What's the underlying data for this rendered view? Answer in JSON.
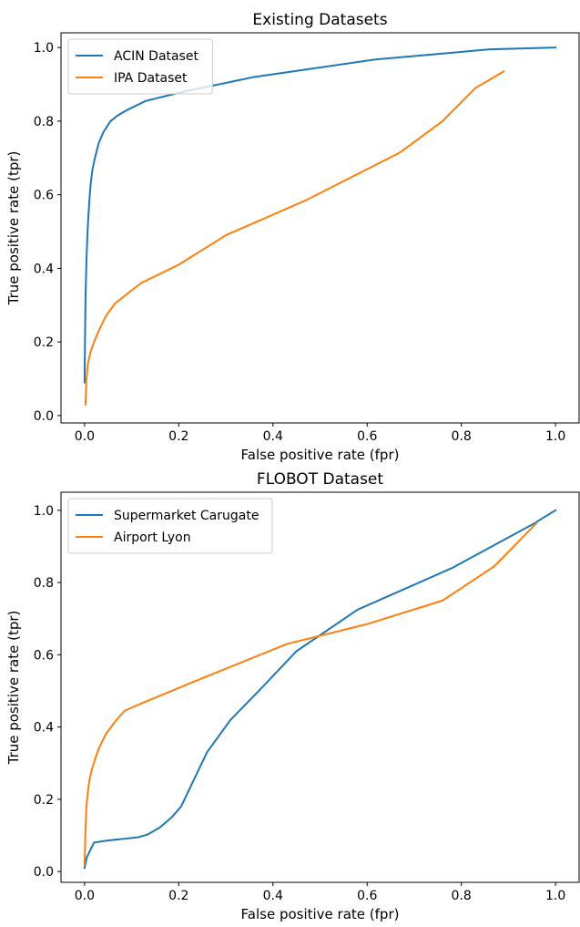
{
  "chart_data": [
    {
      "type": "line",
      "title": "Existing Datasets",
      "xlabel": "False positive rate (fpr)",
      "ylabel": "True positive rate (tpr)",
      "xlim": [
        -0.05,
        1.05
      ],
      "ylim": [
        -0.02,
        1.04
      ],
      "xticks": [
        0.0,
        0.2,
        0.4,
        0.6,
        0.8,
        1.0
      ],
      "xtick_labels": [
        "0.0",
        "0.2",
        "0.4",
        "0.6",
        "0.8",
        "1.0"
      ],
      "yticks": [
        0.0,
        0.2,
        0.4,
        0.6,
        0.8,
        1.0
      ],
      "ytick_labels": [
        "0.0",
        "0.2",
        "0.4",
        "0.6",
        "0.8",
        "1.0"
      ],
      "grid": false,
      "legend_position": "upper left",
      "series": [
        {
          "name": "ACIN Dataset",
          "color": "#1f77b4",
          "x": [
            0.0,
            0.002,
            0.004,
            0.006,
            0.008,
            0.01,
            0.013,
            0.017,
            0.022,
            0.03,
            0.04,
            0.055,
            0.07,
            0.09,
            0.13,
            0.21,
            0.36,
            0.62,
            0.86,
            1.0
          ],
          "y": [
            0.09,
            0.32,
            0.42,
            0.49,
            0.54,
            0.58,
            0.63,
            0.67,
            0.7,
            0.74,
            0.77,
            0.8,
            0.815,
            0.83,
            0.855,
            0.88,
            0.92,
            0.968,
            0.995,
            1.0
          ]
        },
        {
          "name": "IPA Dataset",
          "color": "#ff7f0e",
          "x": [
            0.002,
            0.004,
            0.007,
            0.012,
            0.02,
            0.03,
            0.045,
            0.065,
            0.08,
            0.12,
            0.2,
            0.3,
            0.47,
            0.67,
            0.76,
            0.83,
            0.89
          ],
          "y": [
            0.03,
            0.1,
            0.14,
            0.17,
            0.2,
            0.23,
            0.27,
            0.305,
            0.32,
            0.36,
            0.41,
            0.49,
            0.585,
            0.715,
            0.8,
            0.89,
            0.935
          ]
        }
      ]
    },
    {
      "type": "line",
      "title": "FLOBOT Dataset",
      "xlabel": "False positive rate (fpr)",
      "ylabel": "True positive rate (tpr)",
      "xlim": [
        -0.05,
        1.05
      ],
      "ylim": [
        -0.03,
        1.05
      ],
      "xticks": [
        0.0,
        0.2,
        0.4,
        0.6,
        0.8,
        1.0
      ],
      "xtick_labels": [
        "0.0",
        "0.2",
        "0.4",
        "0.6",
        "0.8",
        "1.0"
      ],
      "yticks": [
        0.0,
        0.2,
        0.4,
        0.6,
        0.8,
        1.0
      ],
      "ytick_labels": [
        "0.0",
        "0.2",
        "0.4",
        "0.6",
        "0.8",
        "1.0"
      ],
      "grid": false,
      "legend_position": "upper left",
      "series": [
        {
          "name": "Supermarket Carugate",
          "color": "#1f77b4",
          "x": [
            0.0,
            0.005,
            0.02,
            0.05,
            0.08,
            0.115,
            0.135,
            0.16,
            0.185,
            0.205,
            0.26,
            0.31,
            0.37,
            0.45,
            0.58,
            0.78,
            0.95,
            1.0
          ],
          "y": [
            0.01,
            0.04,
            0.08,
            0.086,
            0.09,
            0.095,
            0.103,
            0.122,
            0.15,
            0.18,
            0.33,
            0.42,
            0.5,
            0.61,
            0.725,
            0.84,
            0.96,
            1.0
          ],
          "points_order": "xy"
        },
        {
          "name": "Airport Lyon",
          "color": "#ff7f0e",
          "x": [
            0.0,
            0.002,
            0.004,
            0.007,
            0.01,
            0.015,
            0.022,
            0.03,
            0.045,
            0.065,
            0.085,
            0.12,
            0.25,
            0.43,
            0.6,
            0.76,
            0.87,
            0.96
          ],
          "y": [
            0.02,
            0.12,
            0.18,
            0.22,
            0.25,
            0.28,
            0.31,
            0.34,
            0.38,
            0.415,
            0.445,
            0.465,
            0.535,
            0.63,
            0.685,
            0.75,
            0.845,
            0.965
          ]
        }
      ]
    }
  ]
}
